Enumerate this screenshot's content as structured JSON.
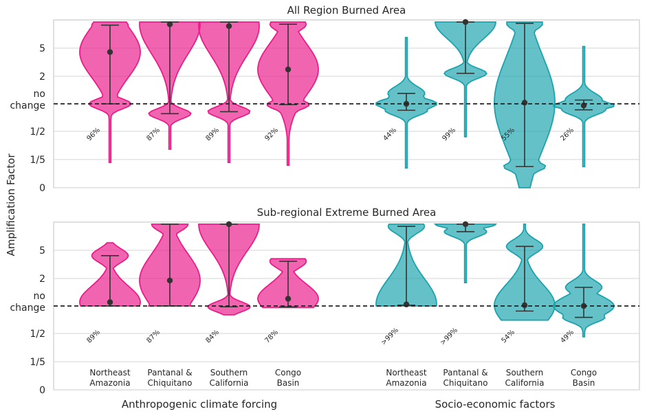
{
  "colors": {
    "anthropogenic": "#ea1c8a",
    "socioeconomic": "#1ba3ad",
    "point": "#333333",
    "grid": "#d5d5d5",
    "zero_line": "#222222"
  },
  "chart_data": {
    "type": "violin",
    "ylabel": "Amplification Factor",
    "y_scale": "log",
    "yticks": [
      {
        "label": "0",
        "value": 0
      },
      {
        "label": "1/5",
        "value": 0.2
      },
      {
        "label": "1/2",
        "value": 0.5
      },
      {
        "label": "no change",
        "value": 1
      },
      {
        "label": "2",
        "value": 2
      },
      {
        "label": "5",
        "value": 5
      }
    ],
    "group_labels": [
      "Anthropogenic climate forcing",
      "Socio-economic factors"
    ],
    "categories": [
      "Northeast Amazonia",
      "Pantanal & Chiquitano",
      "Southern California",
      "Congo Basin"
    ],
    "panels": [
      {
        "title": "All Region Burned Area",
        "series": [
          {
            "group": "Anthropogenic climate forcing",
            "items": [
              {
                "region": "Northeast Amazonia",
                "median": 4.4,
                "whisker_low": 1.0,
                "whisker_high": 8.8,
                "min": 0.18,
                "max": 9.5,
                "percent": "96%"
              },
              {
                "region": "Pantanal & Chiquitano",
                "median": 9.0,
                "whisker_low": 0.78,
                "whisker_high": 9.5,
                "min": 0.28,
                "max": 9.5,
                "percent": "87%"
              },
              {
                "region": "Southern California",
                "median": 8.6,
                "whisker_low": 0.82,
                "whisker_high": 9.5,
                "min": 0.18,
                "max": 9.5,
                "percent": "89%"
              },
              {
                "region": "Congo Basin",
                "median": 2.5,
                "whisker_low": 0.98,
                "whisker_high": 9.0,
                "min": 0.16,
                "max": 9.5,
                "percent": "92%"
              }
            ]
          },
          {
            "group": "Socio-economic factors",
            "items": [
              {
                "region": "Northeast Amazonia",
                "median": 1.0,
                "whisker_low": 0.85,
                "whisker_high": 1.3,
                "min": 0.14,
                "max": 6.5,
                "percent": "44%"
              },
              {
                "region": "Pantanal & Chiquitano",
                "median": 9.5,
                "whisker_low": 2.2,
                "whisker_high": 9.5,
                "min": 0.42,
                "max": 9.5,
                "percent": "99%"
              },
              {
                "region": "Southern California",
                "median": 1.03,
                "whisker_low": 0.15,
                "whisker_high": 9.2,
                "min": 0.0,
                "max": 9.5,
                "percent": "55%"
              },
              {
                "region": "Congo Basin",
                "median": 0.96,
                "whisker_low": 0.86,
                "whisker_high": 1.1,
                "min": 0.15,
                "max": 5.2,
                "percent": "26%"
              }
            ]
          }
        ]
      },
      {
        "title": "Sub-regional Extreme Burned Area",
        "series": [
          {
            "group": "Anthropogenic climate forcing",
            "items": [
              {
                "region": "Northeast Amazonia",
                "median": 1.1,
                "whisker_low": 1.0,
                "whisker_high": 4.2,
                "min": 1.0,
                "max": 6.0,
                "percent": "89%"
              },
              {
                "region": "Pantanal & Chiquitano",
                "median": 1.9,
                "whisker_low": 1.0,
                "whisker_high": 9.5,
                "min": 1.0,
                "max": 9.5,
                "percent": "87%"
              },
              {
                "region": "Southern California",
                "median": 9.5,
                "whisker_low": 0.98,
                "whisker_high": 9.5,
                "min": 0.8,
                "max": 9.5,
                "percent": "84%"
              },
              {
                "region": "Congo Basin",
                "median": 1.2,
                "whisker_low": 0.98,
                "whisker_high": 3.5,
                "min": 0.96,
                "max": 3.8,
                "percent": "78%"
              }
            ]
          },
          {
            "group": "Socio-economic factors",
            "items": [
              {
                "region": "Northeast Amazonia",
                "median": 1.04,
                "whisker_low": 1.02,
                "whisker_high": 9.0,
                "min": 1.0,
                "max": 9.5,
                "percent": ">99%"
              },
              {
                "region": "Pantanal & Chiquitano",
                "median": 9.5,
                "whisker_low": 7.9,
                "whisker_high": 9.5,
                "min": 1.8,
                "max": 9.5,
                "percent": ">99%"
              },
              {
                "region": "Southern California",
                "median": 1.02,
                "whisker_low": 0.88,
                "whisker_high": 5.5,
                "min": 0.7,
                "max": 9.5,
                "percent": "54%"
              },
              {
                "region": "Congo Basin",
                "median": 1.0,
                "whisker_low": 0.75,
                "whisker_high": 1.6,
                "min": 0.45,
                "max": 9.5,
                "percent": "49%"
              }
            ]
          }
        ]
      }
    ]
  }
}
